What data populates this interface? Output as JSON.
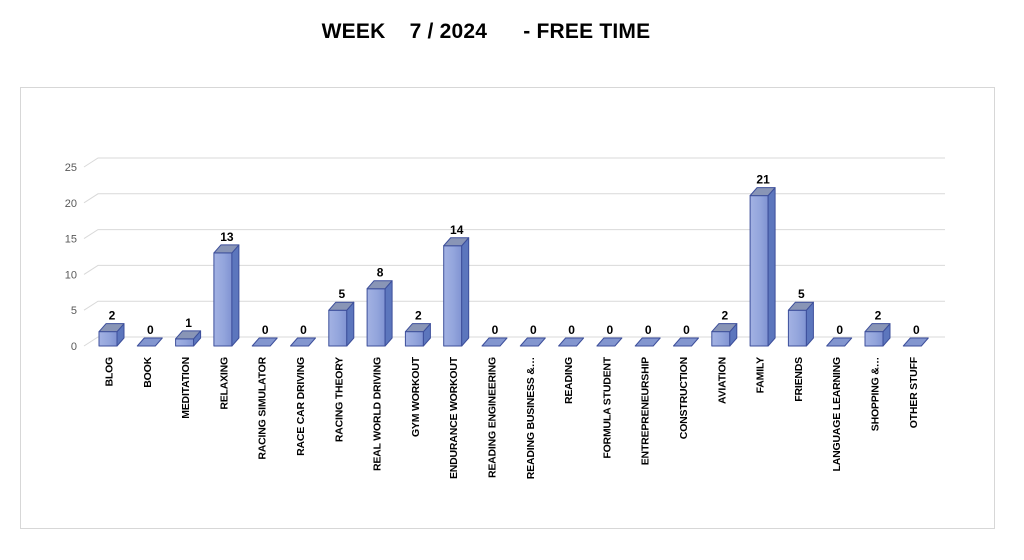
{
  "title": "WEEK    7 / 2024      - FREE TIME",
  "chart_data": {
    "type": "bar",
    "style": "3d-column",
    "title": "WEEK 7 / 2024 - FREE TIME",
    "categories": [
      "BLOG",
      "BOOK",
      "MEDITATION",
      "RELAXING",
      "RACING SIMULATOR",
      "RACE CAR DRIVING",
      "RACING THEORY",
      "REAL WORLD DRIVING",
      "GYM WORKOUT",
      "ENDURANCE WORKOUT",
      "READING ENGINEERING",
      "READING BUSINESS &…",
      "READING",
      "FORMULA STUDENT",
      "ENTREPRENEURSHIP",
      "CONSTRUCTION",
      "AVIATION",
      "FAMILY",
      "FRIENDS",
      "LANGUAGE LEARNING",
      "SHOPPING &…",
      "OTHER STUFF"
    ],
    "values": [
      2,
      0,
      1,
      13,
      0,
      0,
      5,
      8,
      2,
      14,
      0,
      0,
      0,
      0,
      0,
      0,
      2,
      21,
      5,
      0,
      2,
      0
    ],
    "data_labels": true,
    "xlabel": "",
    "ylabel": "",
    "ylim": [
      0,
      25
    ],
    "yticks": [
      0,
      5,
      10,
      15,
      20,
      25
    ],
    "grid": true,
    "legend": false,
    "colors": {
      "bar_front_light": "#A3B2E3",
      "bar_front_mid": "#93A5DC",
      "bar_front_dark": "#8093D2",
      "bar_side": "#5C76BD",
      "bar_top": "#8995B6",
      "bar_flat_zero": "#8396CF",
      "bar_border": "#3D4F9B",
      "gridline": "#D9D9D9",
      "axis_text": "#595959",
      "label_text": "#000000",
      "chart_border": "#D7D7D7",
      "background": "#FFFFFF"
    }
  }
}
